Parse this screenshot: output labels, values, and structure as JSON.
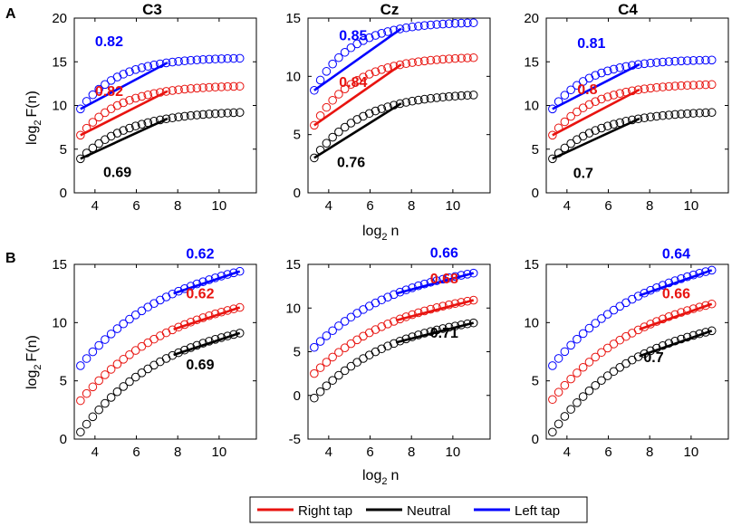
{
  "chart_data": {
    "type": "scatter",
    "panel_labels": {
      "row_a": "A",
      "row_b": "B"
    },
    "channel_titles": [
      "C3",
      "Cz",
      "C4"
    ],
    "xlabel": "log",
    "xlabel_sub": "2",
    "xlabel_tail": "n",
    "ylabel": "log",
    "ylabel_sub": "2",
    "ylabel_tail": "F(n)",
    "x_ticks": [
      4,
      6,
      8,
      10
    ],
    "x_ticks_text": [
      "4",
      "6",
      "8",
      "10"
    ],
    "xlim": [
      3,
      11.8
    ],
    "legend": [
      {
        "name": "Right tap",
        "color": "#e8130f"
      },
      {
        "name": "Neutral",
        "color": "#000000"
      },
      {
        "name": "Left tap",
        "color": "#0000ff"
      }
    ],
    "panels": [
      {
        "row": "A",
        "channel": "C3",
        "ylim": [
          0,
          20
        ],
        "y_ticks": [
          0,
          5,
          10,
          15,
          20
        ],
        "y_ticks_text": [
          "0",
          "5",
          "10",
          "15",
          "20"
        ],
        "series": [
          {
            "name": "Left tap",
            "color": "#0000ff",
            "start": 9.6,
            "end": 15.4,
            "shape": 1.4,
            "fit": [
              3.3,
              7.5
            ],
            "slope": 0.82,
            "slope_text": "0.82"
          },
          {
            "name": "Right tap",
            "color": "#e8130f",
            "start": 6.6,
            "end": 12.2,
            "shape": 1.3,
            "fit": [
              3.3,
              7.5
            ],
            "slope": 0.82,
            "slope_text": "0.82"
          },
          {
            "name": "Neutral",
            "color": "#000000",
            "start": 3.9,
            "end": 9.2,
            "shape": 1.1,
            "fit": [
              3.3,
              7.5
            ],
            "slope": 0.69,
            "slope_text": "0.69"
          }
        ]
      },
      {
        "row": "A",
        "channel": "Cz",
        "ylim": [
          0,
          15
        ],
        "y_ticks": [
          0,
          5,
          10,
          15
        ],
        "y_ticks_text": [
          "0",
          "5",
          "10",
          "15"
        ],
        "series": [
          {
            "name": "Left tap",
            "color": "#0000ff",
            "start": 8.8,
            "end": 14.6,
            "shape": 1.4,
            "fit": [
              3.3,
              7.5
            ],
            "slope": 0.85,
            "slope_text": "0.85"
          },
          {
            "name": "Right tap",
            "color": "#e8130f",
            "start": 5.8,
            "end": 11.6,
            "shape": 1.3,
            "fit": [
              3.3,
              7.5
            ],
            "slope": 0.84,
            "slope_text": "0.84"
          },
          {
            "name": "Neutral",
            "color": "#000000",
            "start": 3.0,
            "end": 8.4,
            "shape": 1.1,
            "fit": [
              3.3,
              7.5
            ],
            "slope": 0.76,
            "slope_text": "0.76"
          }
        ]
      },
      {
        "row": "A",
        "channel": "C4",
        "ylim": [
          0,
          20
        ],
        "y_ticks": [
          0,
          5,
          10,
          15,
          20
        ],
        "y_ticks_text": [
          "0",
          "5",
          "10",
          "15",
          "20"
        ],
        "series": [
          {
            "name": "Left tap",
            "color": "#0000ff",
            "start": 9.6,
            "end": 15.2,
            "shape": 1.4,
            "fit": [
              3.3,
              7.5
            ],
            "slope": 0.81,
            "slope_text": "0.81"
          },
          {
            "name": "Right tap",
            "color": "#e8130f",
            "start": 6.6,
            "end": 12.4,
            "shape": 1.3,
            "fit": [
              3.3,
              7.5
            ],
            "slope": 0.8,
            "slope_text": "0.8"
          },
          {
            "name": "Neutral",
            "color": "#000000",
            "start": 3.9,
            "end": 9.2,
            "shape": 1.1,
            "fit": [
              3.3,
              7.5
            ],
            "slope": 0.7,
            "slope_text": "0.7"
          }
        ]
      },
      {
        "row": "B",
        "channel": "C3",
        "ylim": [
          0,
          15
        ],
        "y_ticks": [
          0,
          5,
          10,
          15
        ],
        "y_ticks_text": [
          "0",
          "5",
          "10",
          "15"
        ],
        "series": [
          {
            "name": "Left tap",
            "color": "#0000ff",
            "start": 6.3,
            "end": 14.4,
            "shape": 0.55,
            "fit": [
              7.8,
              11
            ],
            "slope": 0.62,
            "slope_text": "0.62"
          },
          {
            "name": "Right tap",
            "color": "#e8130f",
            "start": 3.3,
            "end": 11.3,
            "shape": 0.55,
            "fit": [
              7.8,
              11
            ],
            "slope": 0.62,
            "slope_text": "0.62"
          },
          {
            "name": "Neutral",
            "color": "#000000",
            "start": 0.6,
            "end": 9.1,
            "shape": 0.6,
            "fit": [
              7.8,
              11
            ],
            "slope": 0.69,
            "slope_text": "0.69"
          }
        ]
      },
      {
        "row": "B",
        "channel": "Cz",
        "ylim": [
          -5,
          15
        ],
        "y_ticks": [
          -5,
          0,
          5,
          10,
          15
        ],
        "y_ticks_text": [
          "-5",
          "0",
          "5",
          "10",
          "15"
        ],
        "series": [
          {
            "name": "Left tap",
            "color": "#0000ff",
            "start": 5.5,
            "end": 14.0,
            "shape": 0.6,
            "fit": [
              7.3,
              11
            ],
            "slope": 0.66,
            "slope_text": "0.66"
          },
          {
            "name": "Right tap",
            "color": "#e8130f",
            "start": 2.5,
            "end": 10.9,
            "shape": 0.6,
            "fit": [
              7.3,
              11
            ],
            "slope": 0.68,
            "slope_text": "0.68"
          },
          {
            "name": "Neutral",
            "color": "#000000",
            "start": -0.3,
            "end": 8.3,
            "shape": 0.65,
            "fit": [
              7.3,
              11
            ],
            "slope": 0.71,
            "slope_text": "0.71"
          }
        ]
      },
      {
        "row": "B",
        "channel": "C4",
        "ylim": [
          0,
          15
        ],
        "y_ticks": [
          0,
          5,
          10,
          15
        ],
        "y_ticks_text": [
          "0",
          "5",
          "10",
          "15"
        ],
        "series": [
          {
            "name": "Left tap",
            "color": "#0000ff",
            "start": 6.3,
            "end": 14.5,
            "shape": 0.55,
            "fit": [
              7.5,
              11
            ],
            "slope": 0.64,
            "slope_text": "0.64"
          },
          {
            "name": "Right tap",
            "color": "#e8130f",
            "start": 3.4,
            "end": 11.6,
            "shape": 0.55,
            "fit": [
              7.5,
              11
            ],
            "slope": 0.66,
            "slope_text": "0.66"
          },
          {
            "name": "Neutral",
            "color": "#000000",
            "start": 0.6,
            "end": 9.3,
            "shape": 0.6,
            "fit": [
              7.5,
              11
            ],
            "slope": 0.7,
            "slope_text": "0.7"
          }
        ]
      }
    ]
  }
}
